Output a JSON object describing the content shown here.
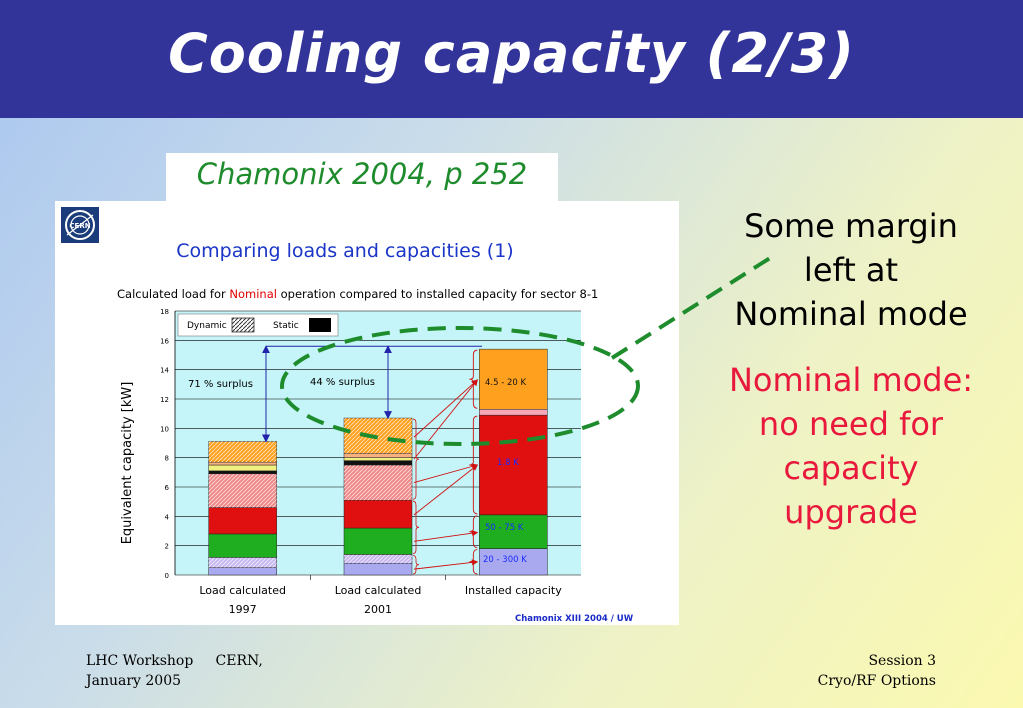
{
  "slide": {
    "title": "Cooling capacity  (2/3)",
    "reference": "Chamonix 2004, p 252",
    "note_margin": [
      "Some margin",
      "left at",
      "Nominal mode"
    ],
    "note_nominal": [
      "Nominal mode:",
      "no need for",
      "capacity",
      "upgrade"
    ],
    "footer_left": [
      "LHC Workshop     CERN,",
      "January 2005"
    ],
    "footer_right": [
      "Session 3",
      "Cryo/RF Options"
    ]
  },
  "chart_data": {
    "type": "bar",
    "title": "Comparing loads and capacities (1)",
    "subtitle_parts": [
      "Calculated load for ",
      "Nominal",
      " operation compared to installed capacity for sector 8-1"
    ],
    "ylabel": "Equivalent capacity  [kW]",
    "ylim": [
      0,
      18
    ],
    "yticks": [
      "0",
      "2",
      "4",
      "6",
      "8",
      "10",
      "12",
      "14",
      "16",
      "18"
    ],
    "categories": [
      [
        "Load calculated",
        "1997"
      ],
      [
        "Load calculated",
        "2001"
      ],
      [
        "Installed capacity"
      ]
    ],
    "legend": {
      "dynamic": "Dynamic",
      "static": "Static"
    },
    "annotations": {
      "surplus1": "71 % surplus",
      "surplus2": "44 % surplus",
      "ref_line_value": 15.6
    },
    "capacity_labels": {
      "k45": "4.5 - 20 K",
      "k18": "1.8 K",
      "k50": "50 - 75 K",
      "k20": "20 - 300 K"
    },
    "source": "Chamonix    XIII 2004 / UW",
    "bars": [
      {
        "segments": [
          {
            "from": 0,
            "to": 0.5,
            "color": "#a9a9f0",
            "pattern": "solid"
          },
          {
            "from": 0.5,
            "to": 1.2,
            "color": "#c8b8f0",
            "pattern": "hatch"
          },
          {
            "from": 1.2,
            "to": 2.8,
            "color": "#1fae1f",
            "pattern": "solid"
          },
          {
            "from": 2.8,
            "to": 4.6,
            "color": "#e01010",
            "pattern": "solid"
          },
          {
            "from": 4.6,
            "to": 6.9,
            "color": "#f08a8a",
            "pattern": "hatch"
          },
          {
            "from": 6.9,
            "to": 7.1,
            "color": "#111111",
            "pattern": "solid"
          },
          {
            "from": 7.1,
            "to": 7.5,
            "color": "#f0f080",
            "pattern": "solid"
          },
          {
            "from": 7.5,
            "to": 7.7,
            "color": "#f7b080",
            "pattern": "solid"
          },
          {
            "from": 7.7,
            "to": 9.1,
            "color": "#ffa11f",
            "pattern": "hatch"
          }
        ]
      },
      {
        "segments": [
          {
            "from": 0,
            "to": 0.8,
            "color": "#a9a9f0",
            "pattern": "solid"
          },
          {
            "from": 0.8,
            "to": 1.4,
            "color": "#c8b8f0",
            "pattern": "hatch"
          },
          {
            "from": 1.4,
            "to": 3.2,
            "color": "#1fae1f",
            "pattern": "solid"
          },
          {
            "from": 3.2,
            "to": 5.1,
            "color": "#e01010",
            "pattern": "solid"
          },
          {
            "from": 5.1,
            "to": 7.5,
            "color": "#f08a8a",
            "pattern": "hatch"
          },
          {
            "from": 7.5,
            "to": 7.8,
            "color": "#111111",
            "pattern": "solid"
          },
          {
            "from": 7.8,
            "to": 8.0,
            "color": "#f0f080",
            "pattern": "solid"
          },
          {
            "from": 8.0,
            "to": 8.3,
            "color": "#f7b080",
            "pattern": "solid"
          },
          {
            "from": 8.3,
            "to": 10.7,
            "color": "#ffa11f",
            "pattern": "hatch"
          }
        ]
      },
      {
        "segments": [
          {
            "from": 0,
            "to": 1.8,
            "color": "#a9a9f0",
            "pattern": "solid"
          },
          {
            "from": 1.8,
            "to": 4.1,
            "color": "#1fae1f",
            "pattern": "solid"
          },
          {
            "from": 4.1,
            "to": 10.9,
            "color": "#e01010",
            "pattern": "solid"
          },
          {
            "from": 10.9,
            "to": 11.3,
            "color": "#f5a8b8",
            "pattern": "solid"
          },
          {
            "from": 11.3,
            "to": 15.4,
            "color": "#ffa11f",
            "pattern": "solid"
          }
        ]
      }
    ]
  }
}
